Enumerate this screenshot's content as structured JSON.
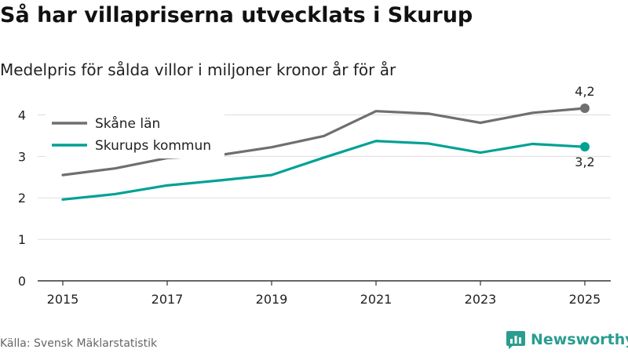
{
  "header": {
    "title": "Så har villapriserna utvecklats i Skurup",
    "subtitle": "Medelpris för sålda villor i miljoner kronor år för år"
  },
  "footer": {
    "source": "Källa: Svensk Mäklarstatistik",
    "brand": "Newsworthy"
  },
  "colors": {
    "skane": "#6f6f6f",
    "skurup": "#00a195",
    "grid": "#dddddd",
    "axis": "#333333",
    "brand": "#2a9d8f"
  },
  "chart_data": {
    "type": "line",
    "title": "Så har villapriserna utvecklats i Skurup",
    "subtitle": "Medelpris för sålda villor i miljoner kronor år för år",
    "xlabel": "",
    "ylabel": "",
    "x": [
      2015,
      2016,
      2017,
      2018,
      2019,
      2020,
      2021,
      2022,
      2023,
      2024,
      2025
    ],
    "xticks": [
      "2015",
      "2017",
      "2019",
      "2021",
      "2023",
      "2025"
    ],
    "yticks": [
      "0",
      "1",
      "2",
      "3",
      "4"
    ],
    "ylim": [
      0,
      4.5
    ],
    "grid": true,
    "legend": "top-left",
    "series": [
      {
        "name": "Skåne län",
        "values": [
          2.55,
          2.71,
          2.96,
          3.03,
          3.22,
          3.49,
          4.09,
          4.03,
          3.81,
          4.05,
          4.16
        ],
        "end_label": "4,2"
      },
      {
        "name": "Skurups kommun",
        "values": [
          1.96,
          2.09,
          2.3,
          2.42,
          2.55,
          2.97,
          3.37,
          3.31,
          3.09,
          3.3,
          3.23
        ],
        "end_label": "3,2"
      }
    ]
  }
}
